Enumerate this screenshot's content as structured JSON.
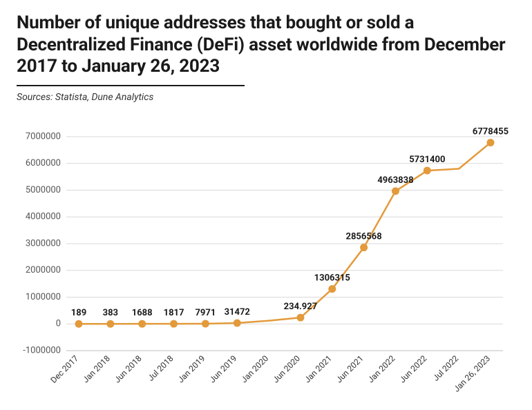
{
  "title": "Number of unique addresses that bought or sold a Decentralized Finance (DeFi) asset worldwide from December 2017 to January 26, 2023",
  "sources": "Sources: Statista, Dune Analytics",
  "chart": {
    "type": "line",
    "background_color": "#ffffff",
    "grid_color": "#d9d9d9",
    "axis_color": "#bfbfbf",
    "line_color": "#e39a3b",
    "marker_color": "#e39a3b",
    "marker_border": "#e39a3b",
    "line_width": 2.5,
    "marker_radius": 5,
    "ylim": [
      -1000000,
      7000000
    ],
    "ytick_step": 1000000,
    "yticks": [
      -1000000,
      0,
      1000000,
      2000000,
      3000000,
      4000000,
      5000000,
      6000000,
      7000000
    ],
    "title_fontsize": 26,
    "label_fontsize": 13,
    "value_label_fontsize": 13,
    "xtick_rotation_deg": 45,
    "categories": [
      "Dec 2017",
      "Jan 2018",
      "Jun 2018",
      "Jul 2018",
      "Jan 2019",
      "Jun 2019",
      "Jan 2020",
      "Jun 2020",
      "Jan 2021",
      "Jun 2021",
      "Jan 2022",
      "Jun 2022",
      "Jul 2022",
      "Jan 26, 2023"
    ],
    "values": [
      189,
      383,
      1688,
      1817,
      7971,
      31472,
      null,
      234927,
      1306315,
      2856568,
      4963838,
      5731400,
      null,
      6778455
    ],
    "value_labels": [
      "189",
      "383",
      "1688",
      "1817",
      "7971",
      "31472",
      "",
      "234.927",
      "1306315",
      "2856568",
      "4963838",
      "5731400",
      "",
      "6778455"
    ],
    "line_values": [
      189,
      383,
      1688,
      1817,
      7971,
      31472,
      120000,
      234927,
      1306315,
      2856568,
      4963838,
      5731400,
      5800000,
      6778455
    ]
  }
}
